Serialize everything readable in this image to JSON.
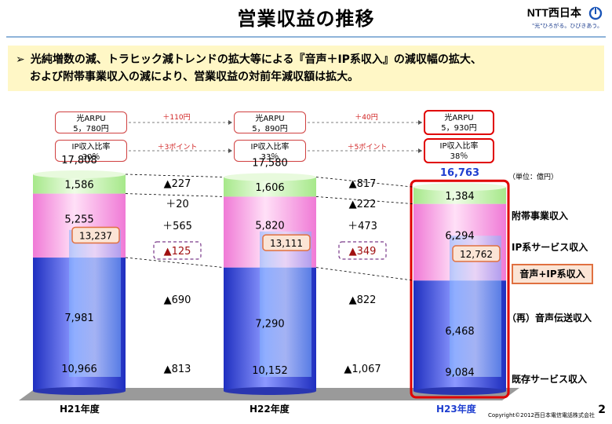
{
  "page": {
    "title": "営業収益の推移",
    "company": "NTT西日本",
    "tagline": "\"光\"ひろがる。ひびきあう。",
    "banner_line1": "光純増数の減、トラヒック減トレンドの拡大等による『音声＋IP系収入』の減収幅の拡大、",
    "banner_line2": "および附帯事業収入の減により、営業収益の対前年減収額は拡大。",
    "banner_marker": "➢",
    "unit": "（単位：億円）",
    "copyright": "Copyright©2012西日本電信電話株式会社",
    "page_number": "2"
  },
  "info_boxes": {
    "arpu_label": "光ARPU",
    "arpu_values": [
      "5，780円",
      "5，890円",
      "5，930円"
    ],
    "arpu_deltas": [
      "＋110円",
      "＋40円"
    ],
    "ip_label": "IP収入比率",
    "ip_values": [
      "30％",
      "33％",
      "38％"
    ],
    "ip_deltas": [
      "＋3ポイント",
      "＋5ポイント"
    ]
  },
  "chart_data": {
    "type": "bar",
    "stacked": true,
    "categories": [
      "H21年度",
      "H22年度",
      "H23年度"
    ],
    "series": [
      {
        "name": "既存サービス収入",
        "values": [
          10966,
          10152,
          9084
        ],
        "color": "#3c4fd6"
      },
      {
        "name": "IP系サービス収入",
        "values": [
          5255,
          5820,
          6294
        ],
        "color": "#f6a6e6"
      },
      {
        "name": "附帯事業収入",
        "values": [
          1586,
          1606,
          1384
        ],
        "color": "#c8f2b0"
      }
    ],
    "totals": [
      "17,808",
      "17,580",
      "16,763"
    ],
    "segment_labels": {
      "existing": [
        "10,966",
        "10,152",
        "9,084"
      ],
      "ip": [
        "5,255",
        "5,820",
        "6,294"
      ],
      "aux": [
        "1,586",
        "1,606",
        "1,384"
      ]
    },
    "voice_ip": {
      "name": "音声+IP系収入",
      "values": [
        13237,
        13111,
        12762
      ],
      "labels": [
        "13,237",
        "13,111",
        "12,762"
      ]
    },
    "voice": {
      "name": "（再）音声伝送収入",
      "values": [
        7981,
        7290,
        6468
      ],
      "labels": [
        "7,981",
        "7,290",
        "6,468"
      ]
    },
    "change_labels": [
      {
        "total": "▲227",
        "aux": "＋20",
        "ip": "＋565",
        "voice_ip": "▲125",
        "voice": "▲690",
        "existing": "▲813"
      },
      {
        "total": "▲817",
        "aux": "▲222",
        "ip": "＋473",
        "voice_ip": "▲349",
        "voice": "▲822",
        "existing": "▲1,067"
      }
    ],
    "legend": [
      "附帯事業収入",
      "IP系サービス収入",
      "音声+IP系収入",
      "（再）音声伝送収入",
      "既存サービス収入"
    ],
    "highlight_category": "H23年度",
    "highlight_color": "#1f3fd0"
  }
}
